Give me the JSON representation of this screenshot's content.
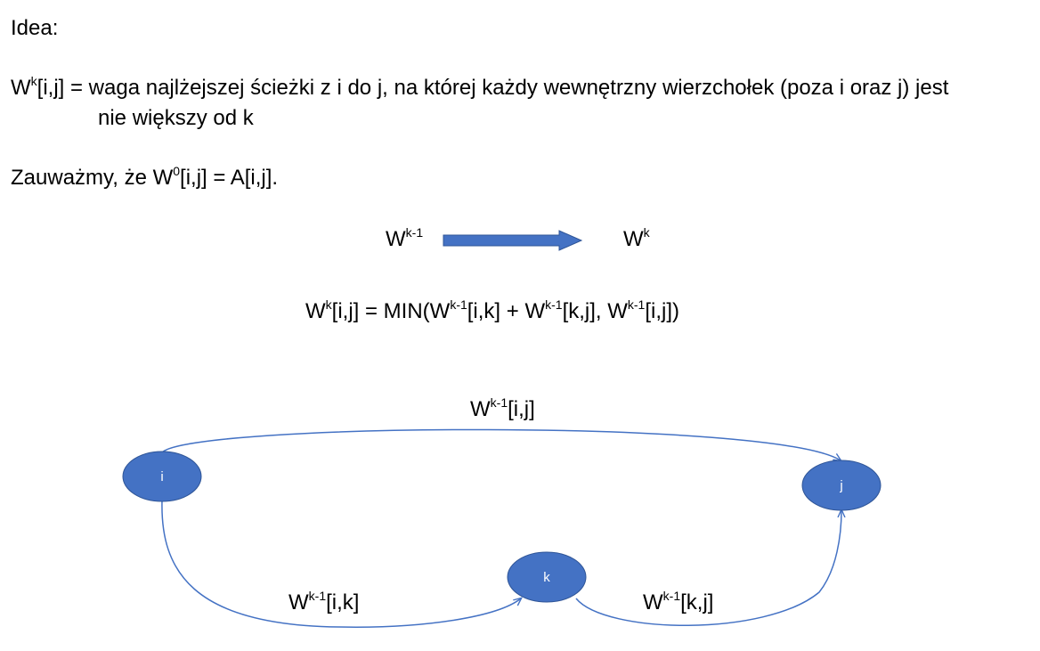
{
  "heading": "Idea:",
  "definition": {
    "symbol": "W",
    "sup": "k",
    "line1": "[i,j] = waga najlżejszej ścieżki z i do j, na której każdy wewnętrzny wierzchołek (poza i oraz j) jest",
    "line2": "nie większy od k"
  },
  "note": {
    "prefix": "Zauważmy, że W",
    "sup": "0",
    "suffix": "[i,j] = A[i,j]."
  },
  "transition": {
    "from_base": "W",
    "from_sup": "k-1",
    "to_base": "W",
    "to_sup": "k"
  },
  "formula": {
    "p1": "W",
    "s1": "k",
    "p2": "[i,j] = MIN(W",
    "s2": "k-1",
    "p3": "[i,k] + W",
    "s3": "k-1",
    "p4": "[k,j], W",
    "s4": "k-1",
    "p5": "[i,j])"
  },
  "graph": {
    "node_color": "#4472C4",
    "edge_color": "#4472C4",
    "nodes": {
      "i": "i",
      "j": "j",
      "k": "k"
    },
    "edges": {
      "ij": {
        "base": "W",
        "sup": "k-1",
        "rest": "[i,j]"
      },
      "ik": {
        "base": "W",
        "sup": "k-1",
        "rest": "[i,k]"
      },
      "kj": {
        "base": "W",
        "sup": "k-1",
        "rest": "[k,j]"
      }
    }
  }
}
